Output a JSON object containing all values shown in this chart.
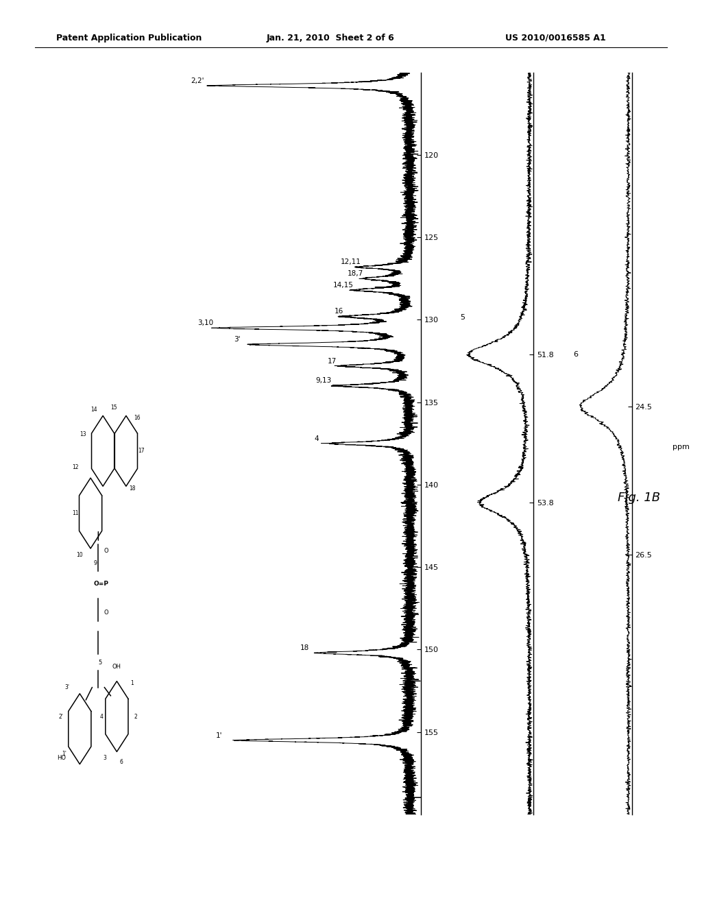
{
  "header_left": "Patent Application Publication",
  "header_center": "Jan. 21, 2010  Sheet 2 of 6",
  "header_right": "US 2010/0016585 A1",
  "figure_label": "Fig. 1B",
  "background_color": "#ffffff",
  "text_color": "#000000",
  "aromatic_peaks": [
    {
      "ppm": 155.5,
      "label": "1'",
      "intensity": 0.78
    },
    {
      "ppm": 150.2,
      "label": "18",
      "intensity": 0.42
    },
    {
      "ppm": 137.5,
      "label": "4",
      "intensity": 0.36
    },
    {
      "ppm": 134.0,
      "label": "9,13",
      "intensity": 0.33
    },
    {
      "ppm": 132.8,
      "label": "17",
      "intensity": 0.3
    },
    {
      "ppm": 131.5,
      "label": "3'",
      "intensity": 0.7
    },
    {
      "ppm": 130.5,
      "label": "3,10",
      "intensity": 0.85
    },
    {
      "ppm": 129.8,
      "label": "16",
      "intensity": 0.27
    },
    {
      "ppm": 128.2,
      "label": "14,15",
      "intensity": 0.24
    },
    {
      "ppm": 127.5,
      "label": "18,7",
      "intensity": 0.2
    },
    {
      "ppm": 126.8,
      "label": "12,11",
      "intensity": 0.22
    },
    {
      "ppm": 115.8,
      "label": "2,2'",
      "intensity": 0.88
    }
  ],
  "aromatic_ticks": [
    120,
    125,
    130,
    135,
    140,
    145,
    150,
    155
  ],
  "aromatic_ppm_min": 115,
  "aromatic_ppm_max": 160,
  "methoxy_peaks": [
    {
      "ppm": 53.8,
      "label": "",
      "intensity": 0.65
    },
    {
      "ppm": 51.8,
      "label": "5",
      "intensity": 0.8
    }
  ],
  "methoxy_ticks": [
    53.8,
    51.8
  ],
  "methoxy_tick_labels": [
    "53.8",
    "51.8"
  ],
  "methoxy_ppm_min": 48,
  "methoxy_ppm_max": 58,
  "alkyl_peaks": [
    {
      "ppm": 24.5,
      "label": "6",
      "intensity": 0.75
    }
  ],
  "alkyl_ticks": [
    26.5,
    24.5
  ],
  "alkyl_tick_labels": [
    "26.5",
    "24.5"
  ],
  "alkyl_ppm_min": 20,
  "alkyl_ppm_max": 30
}
